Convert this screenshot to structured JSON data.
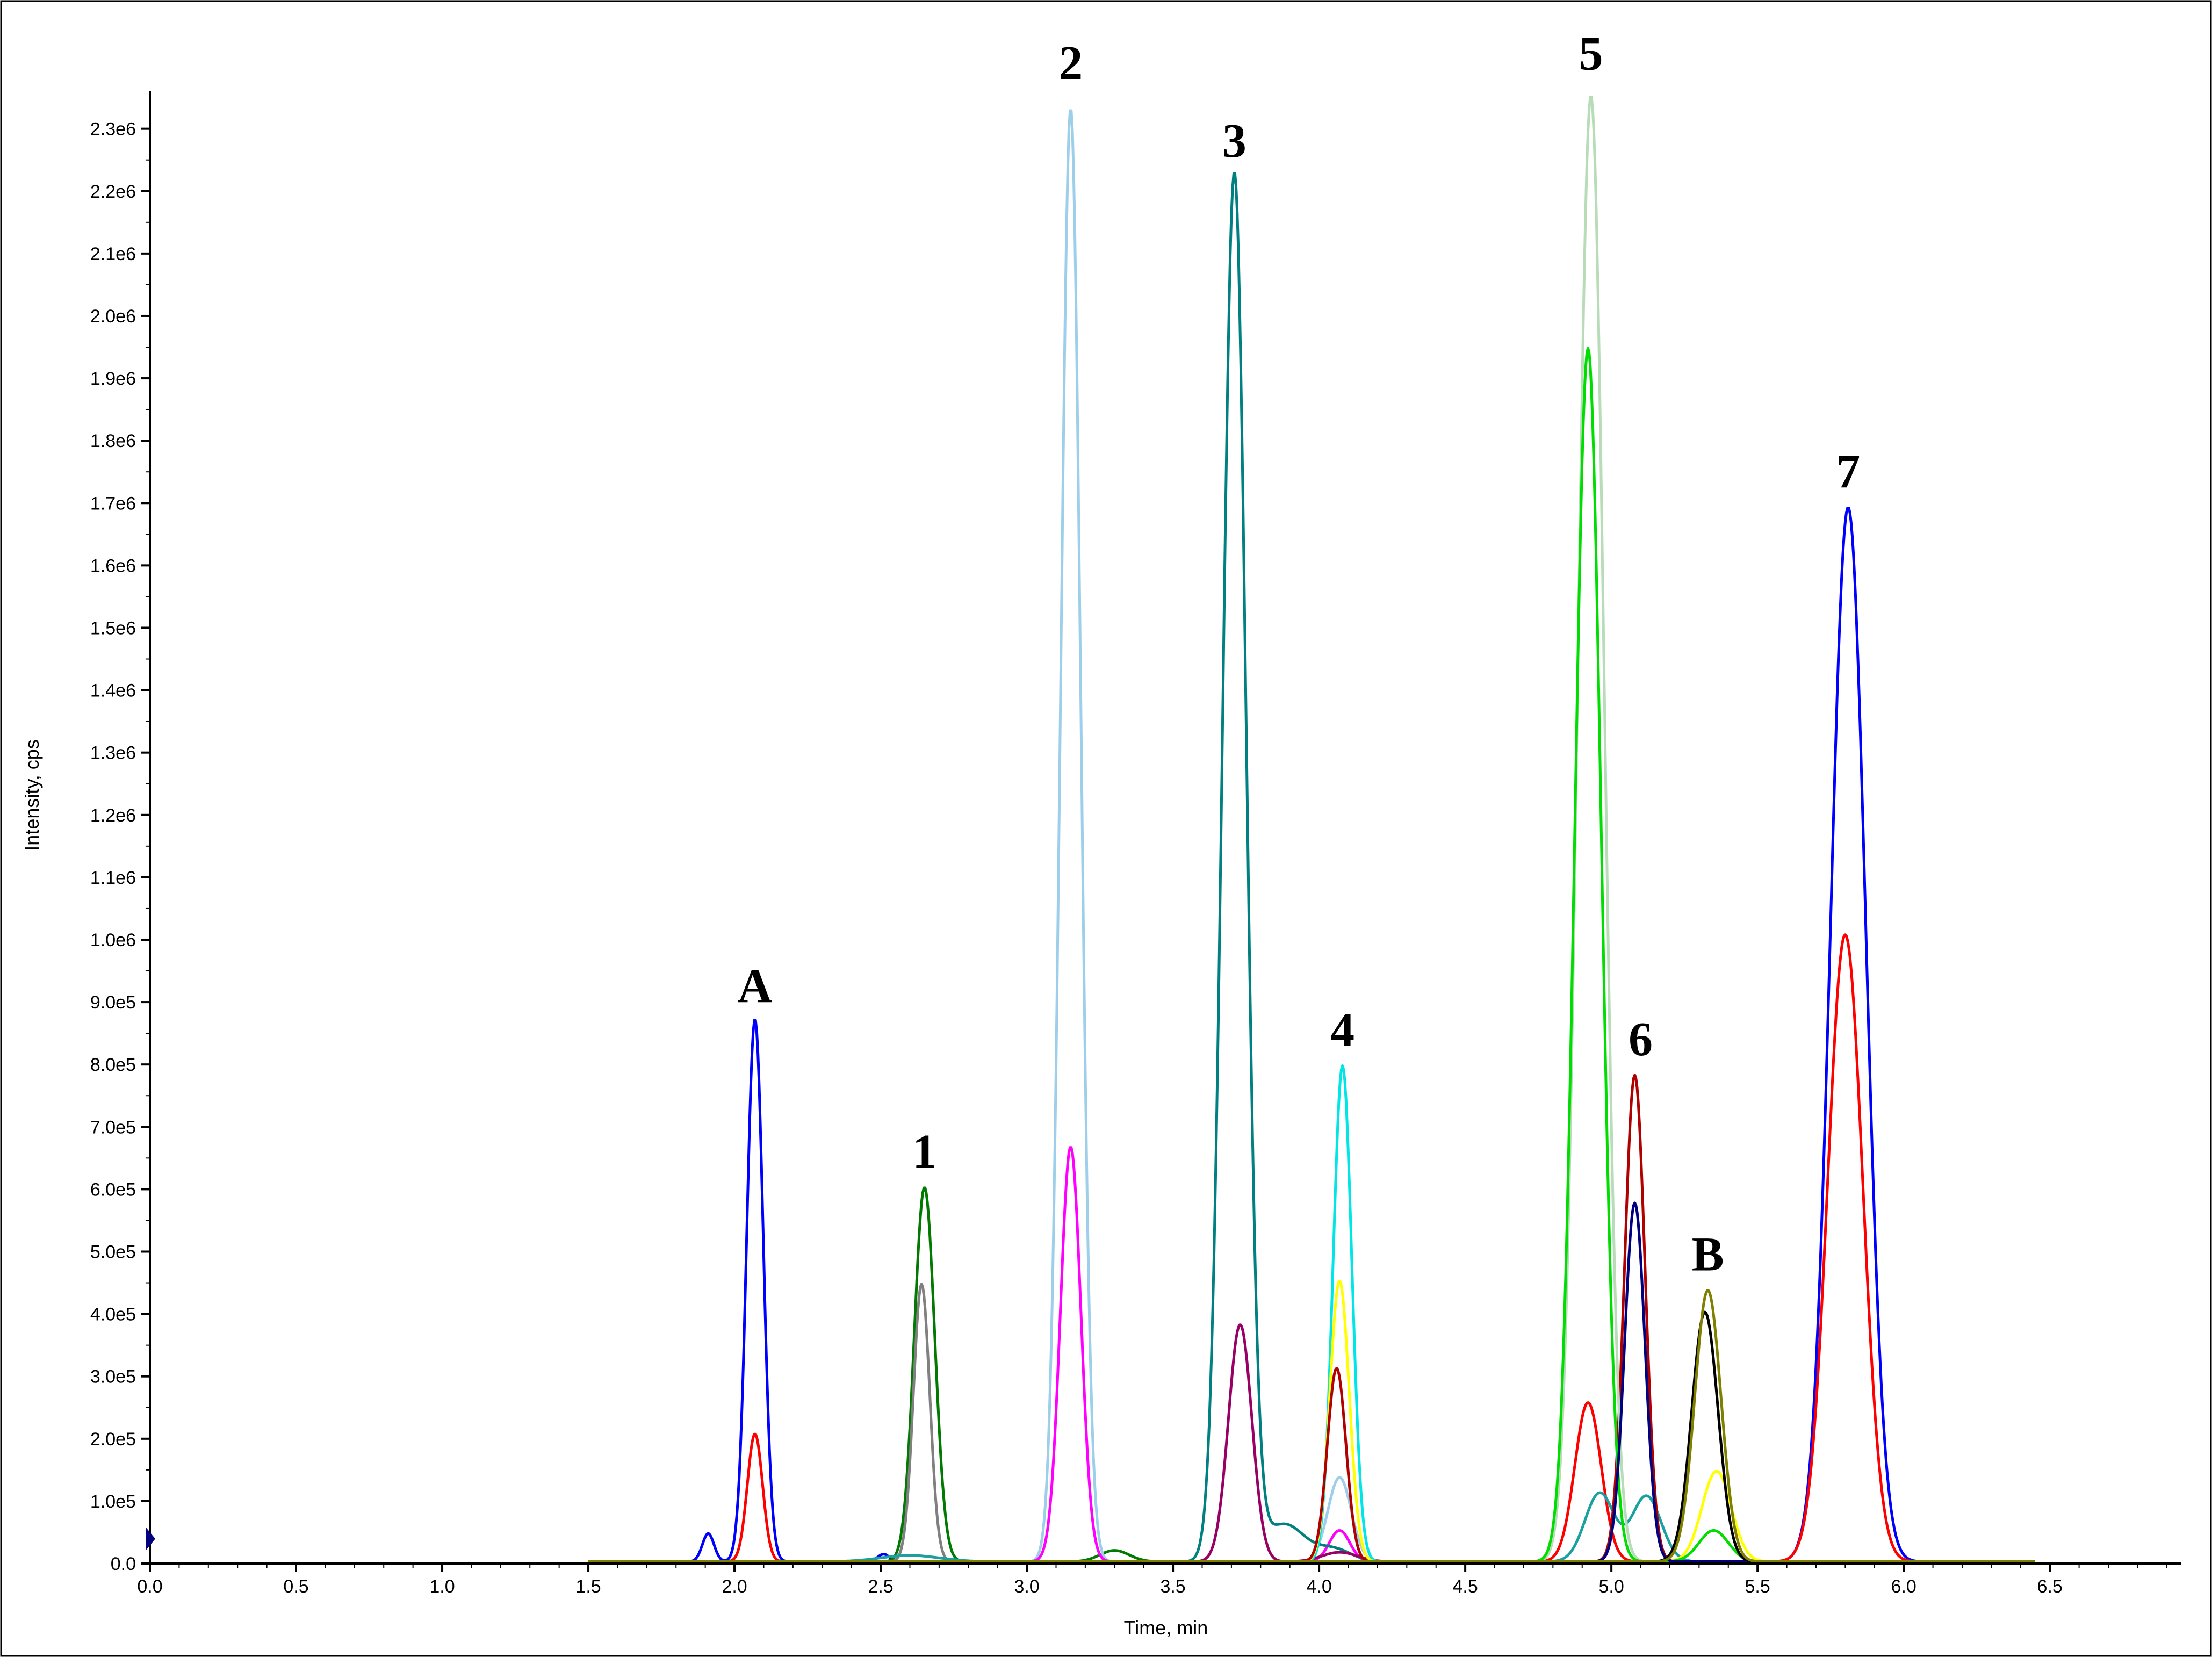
{
  "chart_data": {
    "type": "line",
    "xlabel": "Time, min",
    "ylabel": "Intensity, cps",
    "xlim": [
      0.0,
      6.95
    ],
    "ylim": [
      0,
      2360000
    ],
    "x_ticks": [
      0.0,
      0.5,
      1.0,
      1.5,
      2.0,
      2.5,
      3.0,
      3.5,
      4.0,
      4.5,
      5.0,
      5.5,
      6.0,
      6.5
    ],
    "x_tick_labels": [
      "0.0",
      "0.5",
      "1.0",
      "1.5",
      "2.0",
      "2.5",
      "3.0",
      "3.5",
      "4.0",
      "4.5",
      "5.0",
      "5.5",
      "6.0",
      "6.5"
    ],
    "y_ticks": [
      0,
      100000,
      200000,
      300000,
      400000,
      500000,
      600000,
      700000,
      800000,
      900000,
      1000000,
      1100000,
      1200000,
      1300000,
      1400000,
      1500000,
      1600000,
      1700000,
      1800000,
      1900000,
      2000000,
      2100000,
      2200000,
      2300000
    ],
    "y_tick_labels": [
      "0.0",
      "1.0e5",
      "2.0e5",
      "3.0e5",
      "4.0e5",
      "5.0e5",
      "6.0e5",
      "7.0e5",
      "8.0e5",
      "9.0e5",
      "1.0e6",
      "1.1e6",
      "1.2e6",
      "1.3e6",
      "1.4e6",
      "1.5e6",
      "1.6e6",
      "1.7e6",
      "1.8e6",
      "1.9e6",
      "2.0e6",
      "2.1e6",
      "2.2e6",
      "2.3e6"
    ],
    "grid": false,
    "baseline": 3000,
    "series": [
      {
        "color": "#0000ff",
        "peaks": [
          [
            1.91,
            45000,
            0.02
          ],
          [
            2.07,
            870000,
            0.028
          ],
          [
            2.51,
            12000,
            0.02
          ],
          [
            5.81,
            1690000,
            0.06
          ]
        ]
      },
      {
        "color": "#ff0000",
        "peaks": [
          [
            2.07,
            205000,
            0.026
          ],
          [
            4.92,
            255000,
            0.045
          ],
          [
            5.8,
            1005000,
            0.06
          ]
        ]
      },
      {
        "color": "#007a00",
        "peaks": [
          [
            2.65,
            600000,
            0.035
          ],
          [
            3.3,
            18000,
            0.05
          ]
        ]
      },
      {
        "color": "#808080",
        "peaks": [
          [
            2.64,
            445000,
            0.028
          ]
        ]
      },
      {
        "color": "#1aa0a0",
        "peaks": [
          [
            2.6,
            10000,
            0.1
          ],
          [
            4.96,
            110000,
            0.05
          ],
          [
            5.12,
            105000,
            0.05
          ]
        ]
      },
      {
        "color": "#9ecfea",
        "peaks": [
          [
            3.15,
            2330000,
            0.034
          ],
          [
            4.07,
            135000,
            0.04
          ]
        ]
      },
      {
        "color": "#ff00ff",
        "peaks": [
          [
            3.15,
            665000,
            0.035
          ],
          [
            4.07,
            50000,
            0.035
          ]
        ]
      },
      {
        "color": "#008080",
        "peaks": [
          [
            3.71,
            2225000,
            0.04
          ],
          [
            3.88,
            60000,
            0.07
          ],
          [
            4.05,
            20000,
            0.06
          ]
        ]
      },
      {
        "color": "#990066",
        "peaks": [
          [
            3.73,
            380000,
            0.04
          ],
          [
            4.07,
            15000,
            0.06
          ]
        ]
      },
      {
        "color": "#00e5e5",
        "peaks": [
          [
            4.08,
            795000,
            0.032
          ]
        ]
      },
      {
        "color": "#ffff00",
        "peaks": [
          [
            4.07,
            450000,
            0.033
          ],
          [
            5.36,
            145000,
            0.05
          ]
        ]
      },
      {
        "color": "#b00000",
        "peaks": [
          [
            4.06,
            310000,
            0.032
          ],
          [
            5.08,
            780000,
            0.035
          ]
        ]
      },
      {
        "color": "#b8dcb8",
        "peaks": [
          [
            4.93,
            2350000,
            0.045
          ]
        ]
      },
      {
        "color": "#00dd00",
        "peaks": [
          [
            4.92,
            1945000,
            0.045
          ],
          [
            5.35,
            50000,
            0.05
          ]
        ]
      },
      {
        "color": "#000080",
        "peaks": [
          [
            5.08,
            575000,
            0.035
          ]
        ]
      },
      {
        "color": "#000000",
        "peaks": [
          [
            5.32,
            400000,
            0.045
          ]
        ]
      },
      {
        "color": "#808000",
        "peaks": [
          [
            5.33,
            435000,
            0.045
          ]
        ]
      }
    ],
    "annotations": [
      {
        "text": "A",
        "x": 2.07,
        "y": 900000
      },
      {
        "text": "1",
        "x": 2.65,
        "y": 635000
      },
      {
        "text": "2",
        "x": 3.15,
        "y": 2380000
      },
      {
        "text": "3",
        "x": 3.71,
        "y": 2255000
      },
      {
        "text": "4",
        "x": 4.08,
        "y": 830000
      },
      {
        "text": "5",
        "x": 4.93,
        "y": 2395000
      },
      {
        "text": "6",
        "x": 5.1,
        "y": 815000
      },
      {
        "text": "B",
        "x": 5.33,
        "y": 470000
      },
      {
        "text": "7",
        "x": 5.81,
        "y": 1725000
      }
    ]
  }
}
